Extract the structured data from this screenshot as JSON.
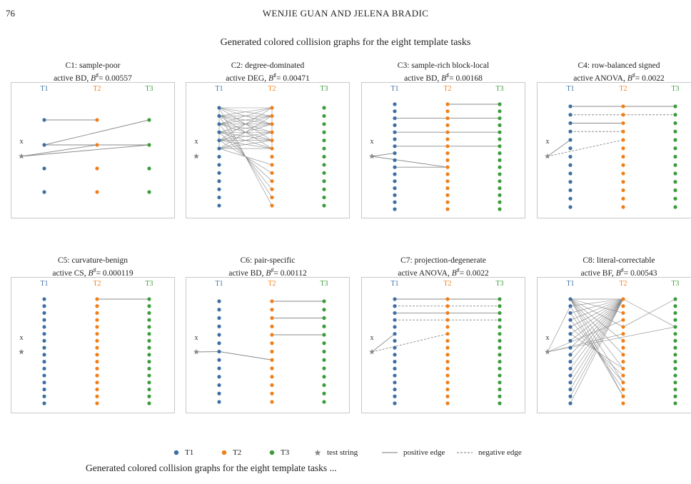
{
  "header": {
    "page_number": "76",
    "authors": "WENJIE GUAN AND JELENA BRADIC"
  },
  "figure_title": "Generated colored collision graphs for the eight template tasks",
  "colors": {
    "T1": "#3d6fa3",
    "T2": "#f07f1a",
    "T3": "#3a9d3a",
    "test": "#888888",
    "edge": "#8a8a8a"
  },
  "panels": [
    {
      "title": "C1: sample-poor",
      "active": "active BD,",
      "bsharp_label": "B",
      "bsharp_value": "= 0.00557",
      "col_labels": [
        "T1",
        "T2",
        "T3"
      ],
      "x_label": "x"
    },
    {
      "title": "C2: degree-dominated",
      "active": "active DEG,",
      "bsharp_label": "B",
      "bsharp_value": "= 0.00471",
      "col_labels": [
        "T1",
        "T2",
        "T3"
      ],
      "x_label": "x"
    },
    {
      "title": "C3: sample-rich block-local",
      "active": "active BD,",
      "bsharp_label": "B",
      "bsharp_value": "= 0.00168",
      "col_labels": [
        "T1",
        "T2",
        "T3"
      ],
      "x_label": "x"
    },
    {
      "title": "C4: row-balanced signed",
      "active": "active ANOVA,",
      "bsharp_label": "B",
      "bsharp_value": "= 0.0022",
      "col_labels": [
        "T1",
        "T2",
        "T3"
      ],
      "x_label": "x"
    },
    {
      "title": "C5: curvature-benign",
      "active": "active CS,",
      "bsharp_label": "B",
      "bsharp_value": "= 0.000119",
      "col_labels": [
        "T1",
        "T2",
        "T3"
      ],
      "x_label": "x"
    },
    {
      "title": "C6: pair-specific",
      "active": "active BD,",
      "bsharp_label": "B",
      "bsharp_value": "= 0.00112",
      "col_labels": [
        "T1",
        "T2",
        "T3"
      ],
      "x_label": "x"
    },
    {
      "title": "C7: projection-degenerate",
      "active": "active ANOVA,",
      "bsharp_label": "B",
      "bsharp_value": "= 0.0022",
      "col_labels": [
        "T1",
        "T2",
        "T3"
      ],
      "x_label": "x"
    },
    {
      "title": "C8: literal-correctable",
      "active": "active BF,",
      "bsharp_label": "B",
      "bsharp_value": "= 0.00543",
      "col_labels": [
        "T1",
        "T2",
        "T3"
      ],
      "x_label": "x"
    }
  ],
  "legend": {
    "t1": "T1",
    "t2": "T2",
    "t3": "T3",
    "test": "test string",
    "pos": "positive edge",
    "neg": "negative edge"
  },
  "caption": "Generated colored collision graphs for the eight template tasks ..."
}
